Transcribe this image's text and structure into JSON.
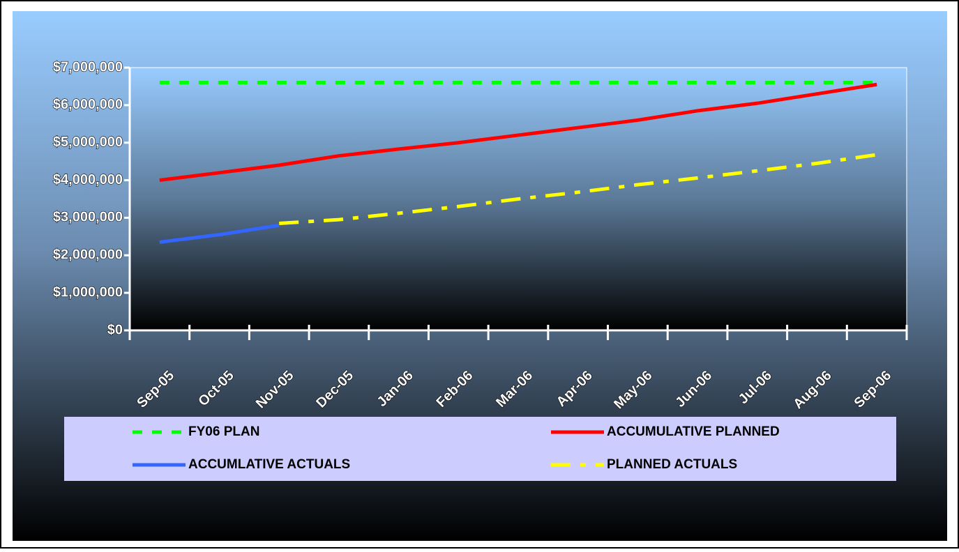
{
  "chart_data": {
    "type": "line",
    "categories": [
      "Sep-05",
      "Oct-05",
      "Nov-05",
      "Dec-05",
      "Jan-06",
      "Feb-06",
      "Mar-06",
      "Apr-06",
      "May-06",
      "Jun-06",
      "Jul-06",
      "Aug-06",
      "Sep-06"
    ],
    "series": [
      {
        "name": "FY06 PLAN",
        "color": "#00ff00",
        "dash": "14 14",
        "values": [
          6600000,
          6600000,
          6600000,
          6600000,
          6600000,
          6600000,
          6600000,
          6600000,
          6600000,
          6600000,
          6600000,
          6600000,
          6600000
        ]
      },
      {
        "name": "ACCUMULATIVE PLANNED",
        "color": "#ff0000",
        "dash": "none",
        "values": [
          4000000,
          4200000,
          4400000,
          4650000,
          4830000,
          5000000,
          5200000,
          5400000,
          5600000,
          5850000,
          6050000,
          6300000,
          6550000
        ]
      },
      {
        "name": "ACCUMLATIVE ACTUALS",
        "color": "#3366ff",
        "dash": "none",
        "values": [
          2350000,
          2550000,
          2800000,
          null,
          null,
          null,
          null,
          null,
          null,
          null,
          null,
          null,
          null
        ]
      },
      {
        "name": "PLANNED ACTUALS",
        "color": "#ffff00",
        "dash": "28 14 8 14",
        "values": [
          null,
          null,
          2850000,
          2950000,
          3120000,
          3300000,
          3500000,
          3680000,
          3880000,
          4060000,
          4250000,
          4450000,
          4680000
        ]
      }
    ],
    "ylim": [
      0,
      7000000
    ],
    "yticks": [
      {
        "value": 0,
        "label": "$0"
      },
      {
        "value": 1000000,
        "label": "$1,000,000"
      },
      {
        "value": 2000000,
        "label": "$2,000,000"
      },
      {
        "value": 3000000,
        "label": "$3,000,000"
      },
      {
        "value": 4000000,
        "label": "$4,000,000"
      },
      {
        "value": 5000000,
        "label": "$5,000,000"
      },
      {
        "value": 6000000,
        "label": "$6,000,000"
      },
      {
        "value": 7000000,
        "label": "$7,000,000"
      }
    ],
    "legend": "bottom"
  }
}
